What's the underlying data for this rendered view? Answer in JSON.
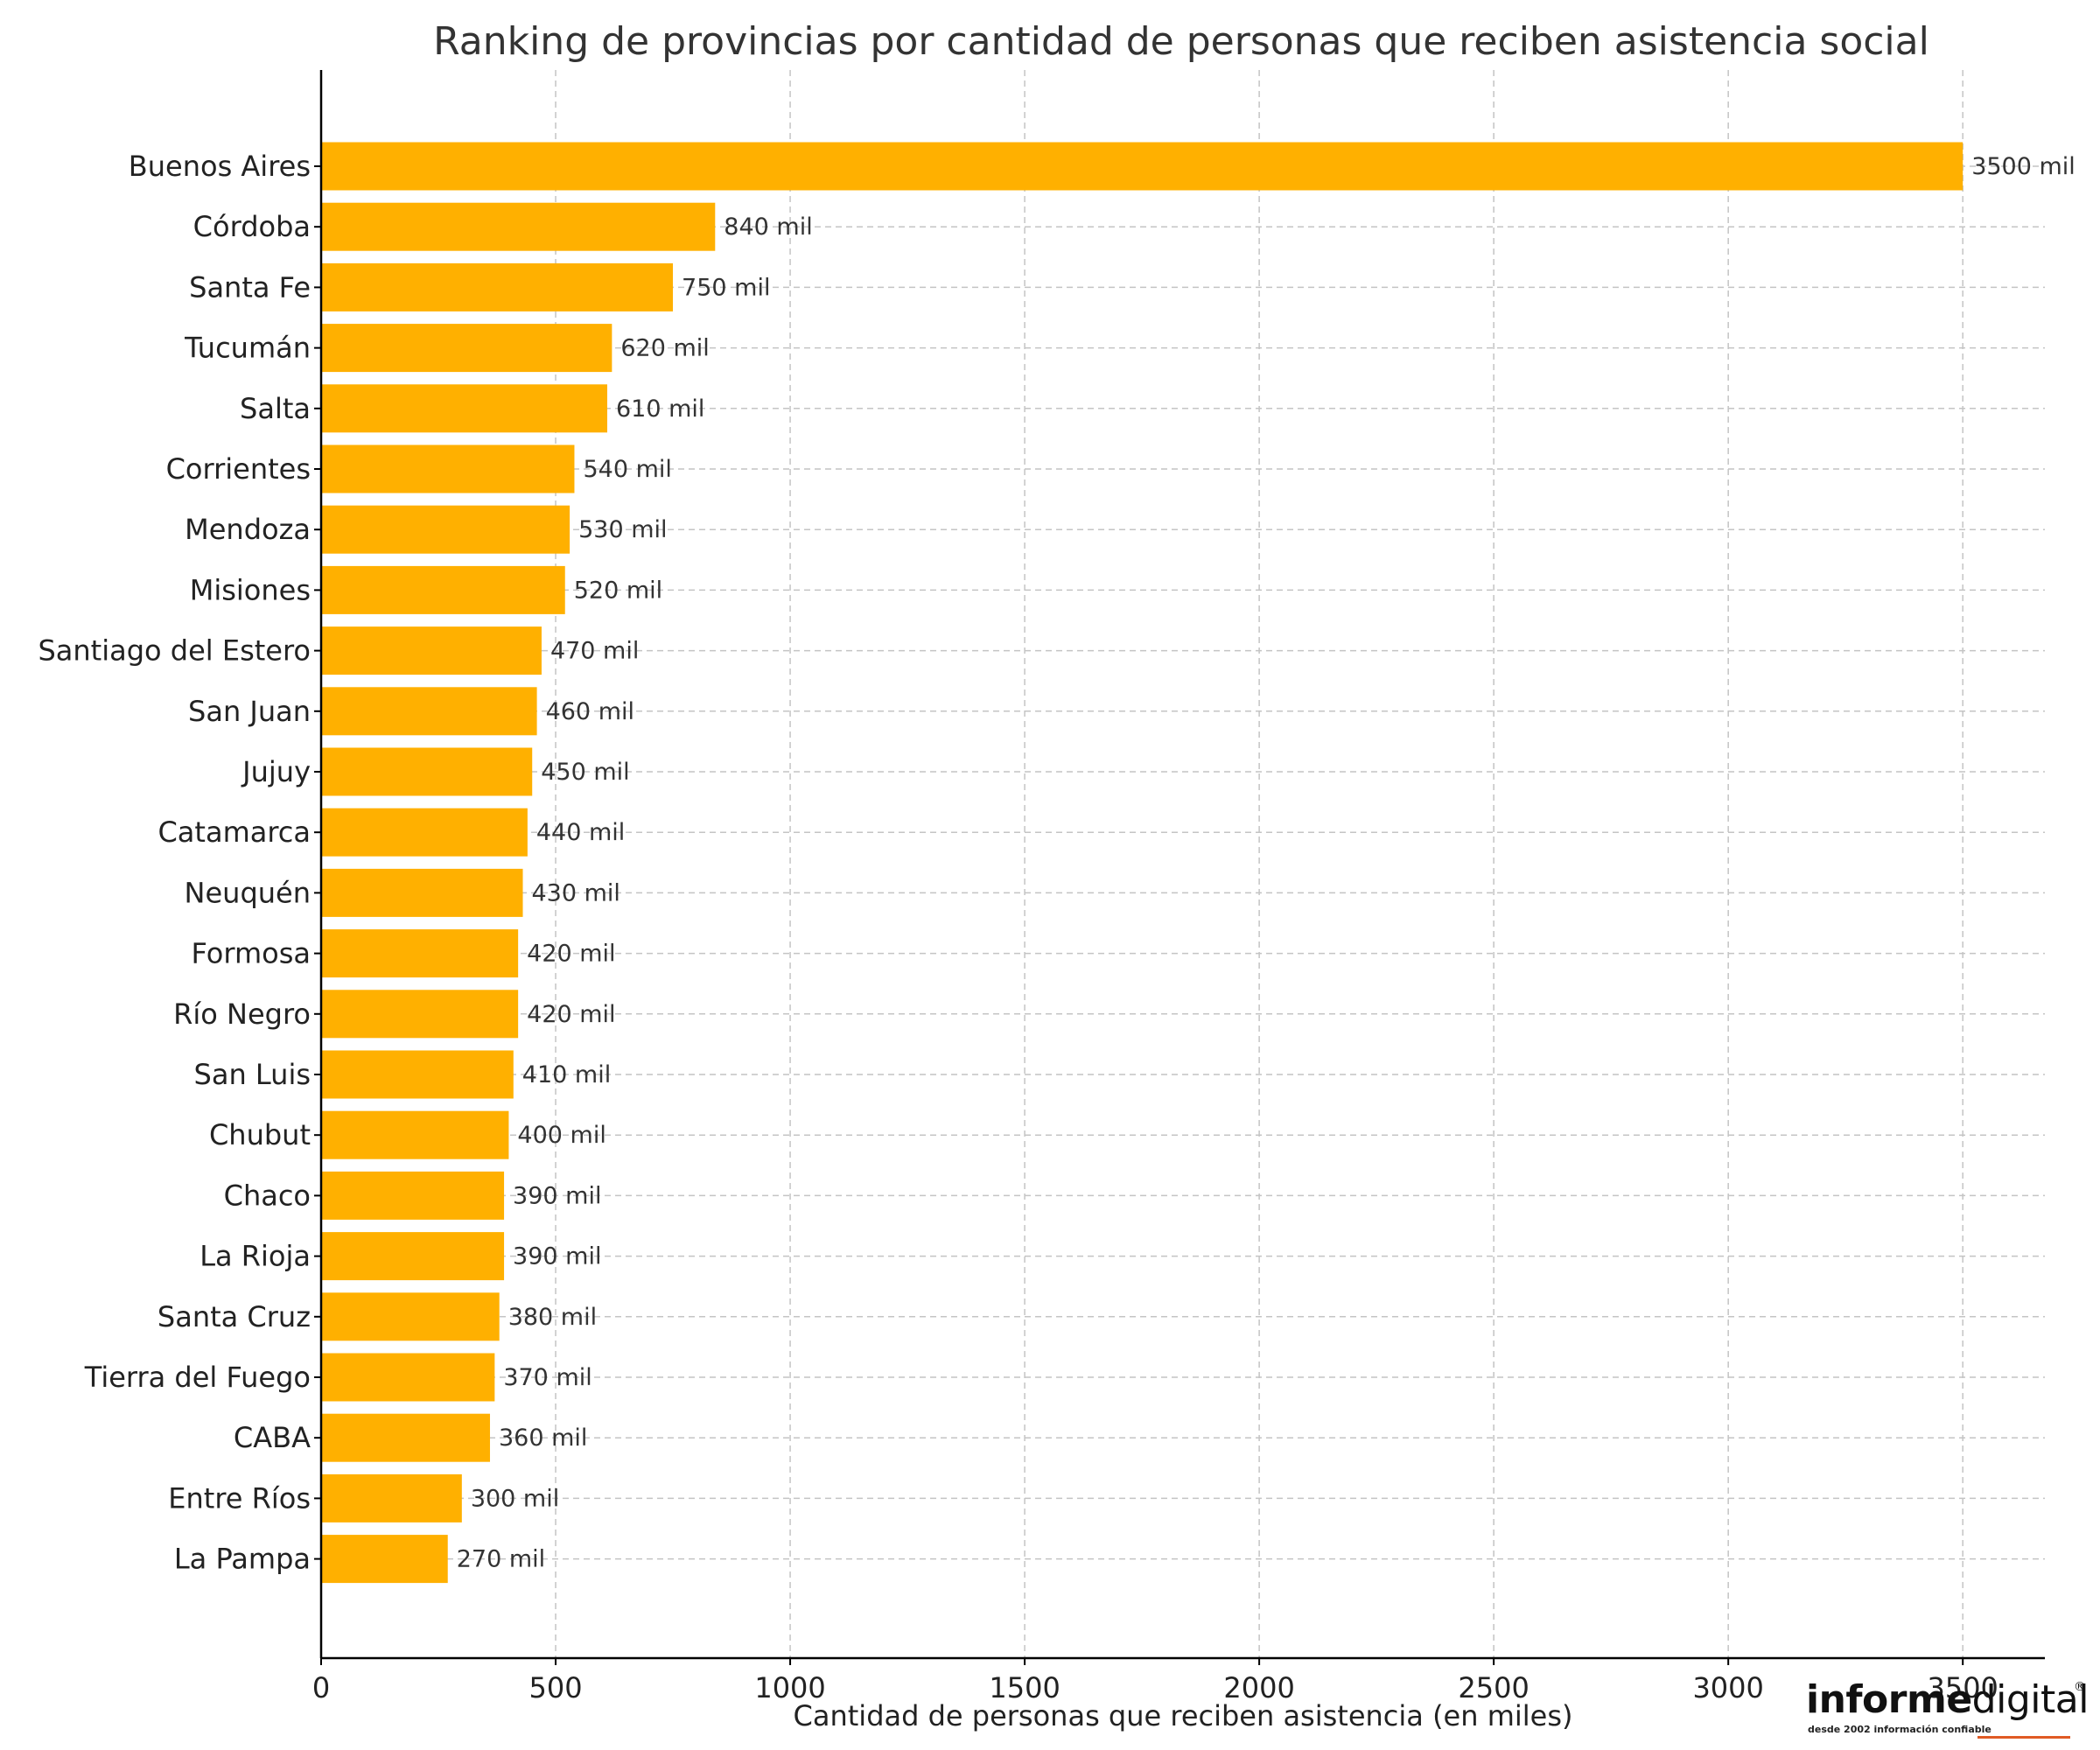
{
  "chart_data": {
    "type": "bar",
    "orientation": "horizontal",
    "title": "Ranking de provincias por cantidad de personas que reciben asistencia social",
    "xlabel": "Cantidad de personas que reciben asistencia (en miles)",
    "ylabel": "",
    "xlim": [
      0,
      3675
    ],
    "xticks": [
      0,
      500,
      1000,
      1500,
      2000,
      2500,
      3000,
      3500
    ],
    "grid": true,
    "bar_color": "#ffb000",
    "categories": [
      "Buenos Aires",
      "Córdoba",
      "Santa Fe",
      "Tucumán",
      "Salta",
      "Corrientes",
      "Mendoza",
      "Misiones",
      "Santiago del Estero",
      "San Juan",
      "Jujuy",
      "Catamarca",
      "Neuquén",
      "Formosa",
      "Río Negro",
      "San Luis",
      "Chubut",
      "Chaco",
      "La Rioja",
      "Santa Cruz",
      "Tierra del Fuego",
      "CABA",
      "Entre Ríos",
      "La Pampa"
    ],
    "values": [
      3500,
      840,
      750,
      620,
      610,
      540,
      530,
      520,
      470,
      460,
      450,
      440,
      430,
      420,
      420,
      410,
      400,
      390,
      390,
      380,
      370,
      360,
      300,
      270
    ],
    "data_labels": [
      "3500 mil",
      "840 mil",
      "750 mil",
      "620 mil",
      "610 mil",
      "540 mil",
      "530 mil",
      "520 mil",
      "470 mil",
      "460 mil",
      "450 mil",
      "440 mil",
      "430 mil",
      "420 mil",
      "420 mil",
      "410 mil",
      "400 mil",
      "390 mil",
      "390 mil",
      "380 mil",
      "370 mil",
      "360 mil",
      "300 mil",
      "270 mil"
    ]
  },
  "logo": {
    "brand_bold": "informe",
    "brand_light": "digital",
    "registered": "®",
    "tagline": "desde 2002 información confiable"
  }
}
